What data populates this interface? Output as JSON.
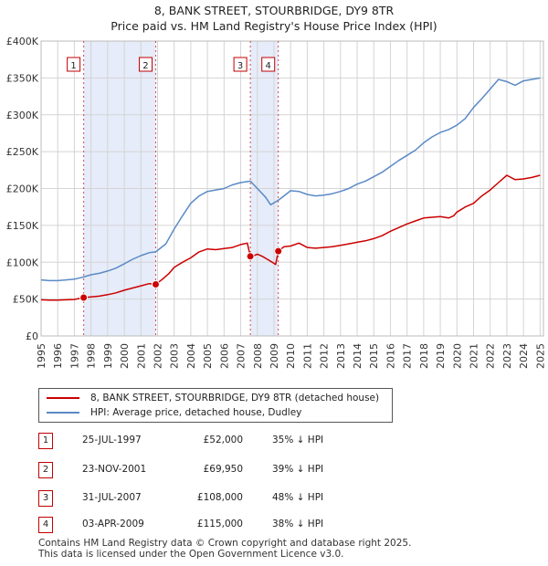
{
  "title_line1": "8, BANK STREET, STOURBRIDGE, DY9 8TR",
  "title_line2": "Price paid vs. HM Land Registry's House Price Index (HPI)",
  "chart_data": {
    "type": "line",
    "title": "8, BANK STREET, STOURBRIDGE, DY9 8TR — Price paid vs. HM Land Registry's House Price Index (HPI)",
    "xlim": [
      1995,
      2025.2
    ],
    "ylim": [
      0,
      400000
    ],
    "x_ticks": [
      1995,
      1996,
      1997,
      1998,
      1999,
      2000,
      2001,
      2002,
      2003,
      2004,
      2005,
      2006,
      2007,
      2008,
      2009,
      2010,
      2011,
      2012,
      2013,
      2014,
      2015,
      2016,
      2017,
      2018,
      2019,
      2020,
      2021,
      2022,
      2023,
      2024,
      2025
    ],
    "y_ticks": [
      {
        "value": 0,
        "label": "£0"
      },
      {
        "value": 50000,
        "label": "£50K"
      },
      {
        "value": 100000,
        "label": "£100K"
      },
      {
        "value": 150000,
        "label": "£150K"
      },
      {
        "value": 200000,
        "label": "£200K"
      },
      {
        "value": 250000,
        "label": "£250K"
      },
      {
        "value": 300000,
        "label": "£300K"
      },
      {
        "value": 350000,
        "label": "£350K"
      },
      {
        "value": 400000,
        "label": "£400K"
      }
    ],
    "grid": true,
    "series": [
      {
        "name": "8, BANK STREET, STOURBRIDGE, DY9 8TR (detached house)",
        "color": "#cc0000",
        "x": [
          1995,
          1995.5,
          1996,
          1996.5,
          1997,
          1997.56,
          1998,
          1998.5,
          1999,
          1999.5,
          2000,
          2000.5,
          2001,
          2001.5,
          2001.89,
          2002.3,
          2002.7,
          2003,
          2003.5,
          2004,
          2004.5,
          2005,
          2005.5,
          2006,
          2006.5,
          2007,
          2007.4,
          2007.58,
          2007.8,
          2008,
          2008.3,
          2008.6,
          2008.9,
          2009.1,
          2009.26,
          2009.6,
          2010,
          2010.5,
          2011,
          2011.5,
          2012,
          2012.5,
          2013,
          2013.5,
          2014,
          2014.5,
          2015,
          2015.5,
          2016,
          2016.5,
          2017,
          2017.5,
          2018,
          2018.5,
          2019,
          2019.5,
          2019.8,
          2020,
          2020.5,
          2021,
          2021.5,
          2022,
          2022.5,
          2023,
          2023.5,
          2024,
          2024.5,
          2025
        ],
        "y": [
          49000,
          48500,
          48500,
          49000,
          49500,
          52000,
          53000,
          54000,
          56000,
          58500,
          62000,
          65000,
          68000,
          71000,
          69950,
          77000,
          85000,
          93000,
          100000,
          106000,
          114000,
          118000,
          117000,
          118500,
          120000,
          124000,
          126000,
          108000,
          109000,
          111000,
          108000,
          104000,
          100000,
          97000,
          115000,
          121000,
          122000,
          126000,
          120000,
          119000,
          120000,
          121000,
          123000,
          125000,
          127000,
          129000,
          132000,
          136000,
          142000,
          147000,
          152000,
          156000,
          160000,
          161000,
          162000,
          160000,
          163000,
          168000,
          175000,
          180000,
          190000,
          198000,
          208000,
          218000,
          212000,
          213000,
          215000,
          218000
        ]
      },
      {
        "name": "HPI: Average price, detached house, Dudley",
        "color": "#5a8ac6",
        "x": [
          1995,
          1995.5,
          1996,
          1996.5,
          1997,
          1997.56,
          1998,
          1998.5,
          1999,
          1999.5,
          2000,
          2000.5,
          2001,
          2001.5,
          2001.89,
          2002.5,
          2003,
          2003.5,
          2004,
          2004.5,
          2005,
          2005.5,
          2006,
          2006.5,
          2007,
          2007.58,
          2008,
          2008.5,
          2008.8,
          2009.26,
          2009.6,
          2010,
          2010.5,
          2011,
          2011.5,
          2012,
          2012.5,
          2013,
          2013.5,
          2014,
          2014.5,
          2015,
          2015.5,
          2016,
          2016.5,
          2017,
          2017.5,
          2018,
          2018.5,
          2019,
          2019.5,
          2020,
          2020.5,
          2021,
          2021.5,
          2022,
          2022.5,
          2023,
          2023.5,
          2024,
          2024.5,
          2025
        ],
        "y": [
          76000,
          75000,
          75000,
          76000,
          77000,
          80000,
          83000,
          85000,
          88000,
          92000,
          98000,
          104000,
          109000,
          113000,
          114000,
          125000,
          145000,
          163000,
          180000,
          190000,
          196000,
          198000,
          200000,
          205000,
          208000,
          210000,
          200000,
          188000,
          178000,
          184000,
          190000,
          197000,
          196000,
          192000,
          190000,
          191000,
          193000,
          196000,
          200000,
          206000,
          210000,
          216000,
          222000,
          230000,
          238000,
          245000,
          252000,
          262000,
          270000,
          276000,
          280000,
          286000,
          295000,
          310000,
          322000,
          335000,
          348000,
          345000,
          340000,
          346000,
          348000,
          350000
        ]
      }
    ],
    "transactions": [
      {
        "id": "1",
        "x": 1997.56,
        "price": 52000,
        "date": "25-JUL-1997",
        "price_label": "£52,000",
        "hpi": "35% ↓ HPI"
      },
      {
        "id": "2",
        "x": 2001.89,
        "price": 69950,
        "date": "23-NOV-2001",
        "price_label": "£69,950",
        "hpi": "39% ↓ HPI"
      },
      {
        "id": "3",
        "x": 2007.58,
        "price": 108000,
        "date": "31-JUL-2007",
        "price_label": "£108,000",
        "hpi": "48% ↓ HPI"
      },
      {
        "id": "4",
        "x": 2009.26,
        "price": 115000,
        "date": "03-APR-2009",
        "price_label": "£115,000",
        "hpi": "38% ↓ HPI"
      }
    ],
    "shaded_periods": [
      [
        1997.56,
        2001.89
      ],
      [
        2007.58,
        2009.26
      ]
    ]
  },
  "legend": {
    "property_label": "8, BANK STREET, STOURBRIDGE, DY9 8TR (detached house)",
    "hpi_label": "HPI: Average price, detached house, Dudley"
  },
  "footer_line1": "Contains HM Land Registry data © Crown copyright and database right 2025.",
  "footer_line2": "This data is licensed under the Open Government Licence v3.0."
}
